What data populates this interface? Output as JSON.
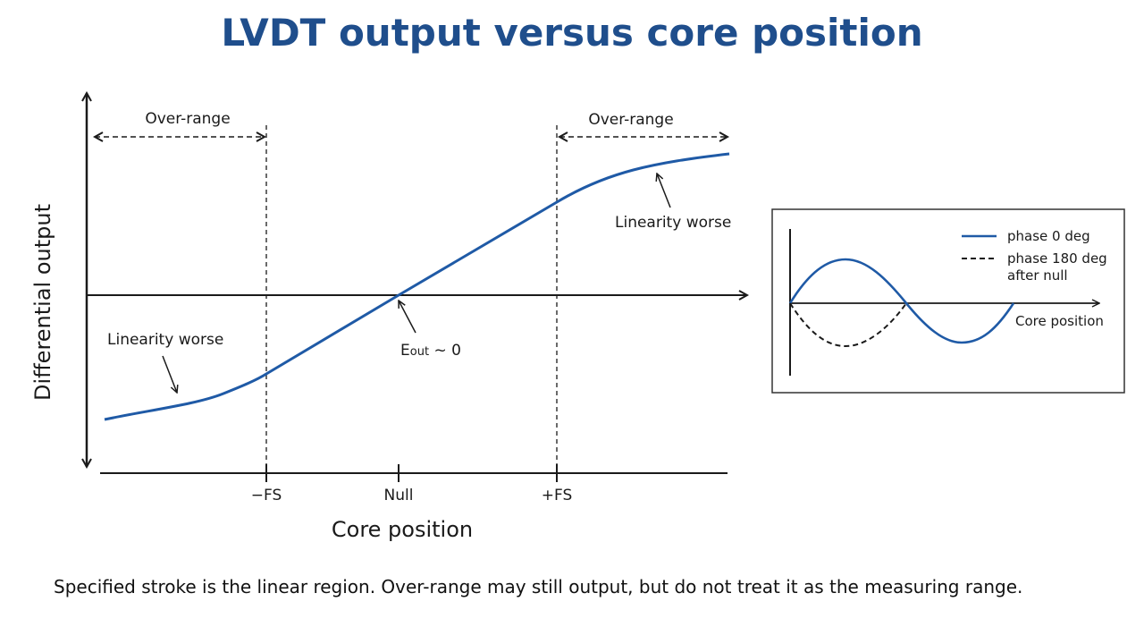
{
  "title": "LVDT output versus core position",
  "caption": "Specified stroke is the linear region. Over-range may still output, but do not treat it as the measuring range.",
  "colors": {
    "title": "#1f4e8c",
    "curve": "#1f5aa6",
    "axis": "#1a1a1a"
  },
  "main_plot": {
    "y_axis_label": "Differential output",
    "x_axis_label": "Core position",
    "ticks": [
      {
        "id": "neg-fs",
        "label": "−FS"
      },
      {
        "id": "null",
        "label": "Null"
      },
      {
        "id": "pos-fs",
        "label": "+FS"
      }
    ],
    "overrange_left": "Over-range",
    "overrange_right": "Over-range",
    "linearity_left": "Linearity worse",
    "linearity_right": "Linearity worse",
    "null_annotation_main": "E",
    "null_annotation_sub": "out",
    "null_annotation_tail": " ~ 0"
  },
  "inset": {
    "legend_phase0": "phase 0 deg",
    "legend_phase180_line1": "phase 180 deg",
    "legend_phase180_line2": "after null",
    "x_label": "Core position"
  }
}
